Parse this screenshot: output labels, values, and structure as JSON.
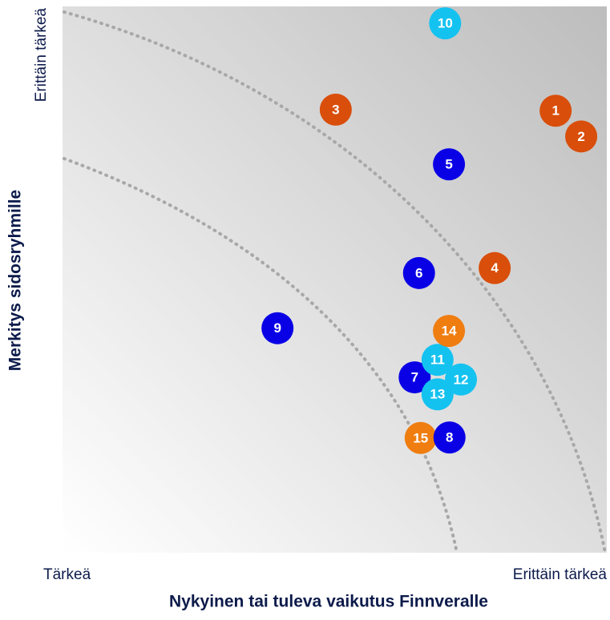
{
  "chart_data": {
    "type": "scatter",
    "xlabel": "Nykyinen tai tuleva vaikutus Finnveralle",
    "ylabel": "Merkitys sidosryhmille",
    "xlim": [
      0,
      100
    ],
    "ylim": [
      0,
      100
    ],
    "xticks": [
      {
        "value": 0,
        "label": "Tärkeä"
      },
      {
        "value": 100,
        "label": "Erittäin tärkeä"
      }
    ],
    "yticks": [
      {
        "value": 100,
        "label": "Erittäin tärkeä"
      }
    ],
    "points": [
      {
        "label": "1",
        "x": 90.6,
        "y": 80.9,
        "color": "#d94e0a"
      },
      {
        "label": "2",
        "x": 95.3,
        "y": 76.2,
        "color": "#d94e0a"
      },
      {
        "label": "3",
        "x": 50.2,
        "y": 81.1,
        "color": "#d94e0a"
      },
      {
        "label": "4",
        "x": 79.4,
        "y": 52.1,
        "color": "#d94e0a"
      },
      {
        "label": "5",
        "x": 71.0,
        "y": 71.1,
        "color": "#0a00e6"
      },
      {
        "label": "6",
        "x": 65.5,
        "y": 51.2,
        "color": "#0a00e6"
      },
      {
        "label": "7",
        "x": 64.7,
        "y": 32.1,
        "color": "#0a00e6"
      },
      {
        "label": "9",
        "x": 39.5,
        "y": 41.1,
        "color": "#0a00e6"
      },
      {
        "label": "10",
        "x": 70.3,
        "y": 96.9,
        "color": "#14c2f0"
      },
      {
        "label": "11",
        "x": 68.9,
        "y": 35.3,
        "color": "#14c2f0"
      },
      {
        "label": "13",
        "x": 68.9,
        "y": 29.0,
        "color": "#14c2f0"
      },
      {
        "label": "12",
        "x": 73.2,
        "y": 31.7,
        "color": "#14c2f0"
      },
      {
        "label": "14",
        "x": 71.0,
        "y": 40.6,
        "color": "#ef7d10"
      },
      {
        "label": "15",
        "x": 65.8,
        "y": 21.0,
        "color": "#ef7d10"
      },
      {
        "label": "8",
        "x": 71.1,
        "y": 21.1,
        "color": "#0a00e6"
      }
    ]
  }
}
